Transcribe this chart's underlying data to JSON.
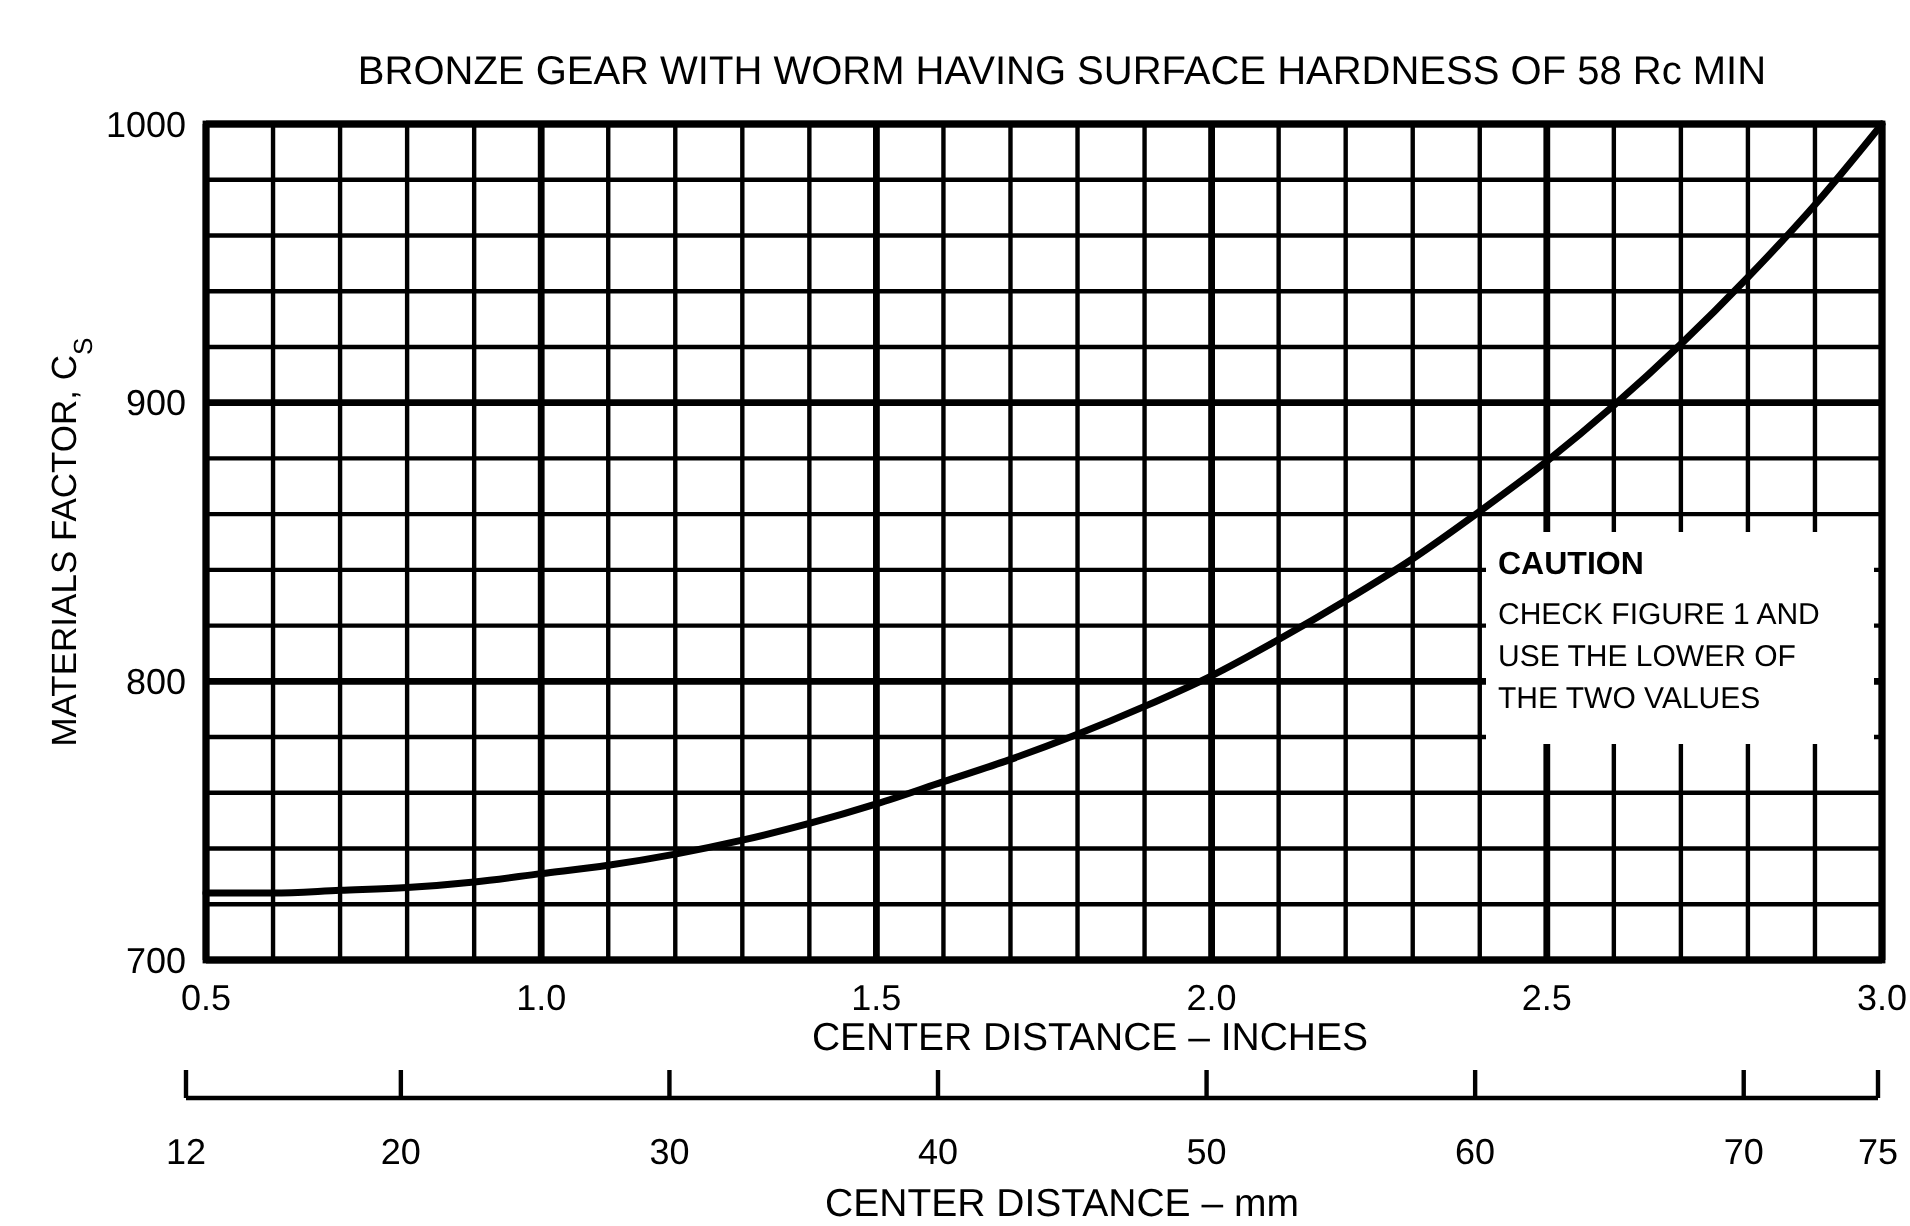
{
  "chart_data": {
    "type": "line",
    "title": "BRONZE GEAR WITH WORM HAVING SURFACE HARDNESS OF 58 Rc MIN",
    "xlabel": "CENTER DISTANCE – INCHES",
    "x2label": "CENTER DISTANCE – mm",
    "ylabel": "MATERIALS FACTOR, C$_{S}$",
    "x": [
      0.5,
      0.6,
      0.7,
      0.8,
      0.9,
      1.0,
      1.1,
      1.2,
      1.3,
      1.4,
      1.5,
      1.6,
      1.7,
      1.8,
      1.9,
      2.0,
      2.1,
      2.2,
      2.3,
      2.4,
      2.5,
      2.6,
      2.7,
      2.8,
      2.9,
      3.0
    ],
    "series": [
      {
        "color": "#000000",
        "values": [
          724,
          724,
          725,
          726,
          728,
          731,
          734,
          738,
          743,
          749,
          756,
          764,
          772,
          781,
          791,
          802,
          815,
          829,
          844,
          861,
          879,
          899,
          921,
          945,
          971,
          1000
        ]
      }
    ],
    "xlim": [
      0.5,
      3.0
    ],
    "ylim": [
      700,
      1000
    ],
    "xticks": [
      0.5,
      {
        "value": 0.6,
        "label": null
      },
      {
        "value": 0.7,
        "label": null
      },
      {
        "value": 0.8,
        "label": null
      },
      {
        "value": 0.9,
        "label": null
      },
      {
        "value": 1,
        "label": "1.0"
      },
      {
        "value": 1.1,
        "label": null
      },
      {
        "value": 1.2,
        "label": null
      },
      {
        "value": 1.3,
        "label": null
      },
      {
        "value": 1.4,
        "label": null
      },
      1.5,
      {
        "value": 1.6,
        "label": null
      },
      {
        "value": 1.7,
        "label": null
      },
      {
        "value": 1.8,
        "label": null
      },
      {
        "value": 1.9,
        "label": null
      },
      {
        "value": 2,
        "label": "2.0"
      },
      {
        "value": 2.1,
        "label": null
      },
      {
        "value": 2.2,
        "label": null
      },
      {
        "value": 2.3,
        "label": null
      },
      {
        "value": 2.4,
        "label": null
      },
      2.5,
      {
        "value": 2.6,
        "label": null
      },
      {
        "value": 2.7,
        "label": null
      },
      {
        "value": 2.8,
        "label": null
      },
      {
        "value": 2.9,
        "label": null
      },
      {
        "value": 3,
        "label": "3.0"
      }
    ],
    "yticks": [
      700,
      {
        "value": 720,
        "label": null
      },
      {
        "value": 740,
        "label": null
      },
      {
        "value": 760,
        "label": null
      },
      {
        "value": 780,
        "label": null
      },
      800,
      {
        "value": 820,
        "label": null
      },
      {
        "value": 840,
        "label": null
      },
      {
        "value": 860,
        "label": null
      },
      {
        "value": 880,
        "label": null
      },
      900,
      {
        "value": 920,
        "label": null
      },
      {
        "value": 940,
        "label": null
      },
      {
        "value": 960,
        "label": null
      },
      {
        "value": 980,
        "label": null
      },
      1000
    ],
    "x2lim": [
      12,
      75
    ],
    "x2ticks": [
      12,
      20,
      30,
      40,
      50,
      60,
      70,
      75
    ],
    "grid": true,
    "line_style": "solid",
    "annotations": [
      "CAUTION",
      "CHECK FIGURE 1 AND USE THE LOWER OF THE TWO VALUES"
    ]
  }
}
